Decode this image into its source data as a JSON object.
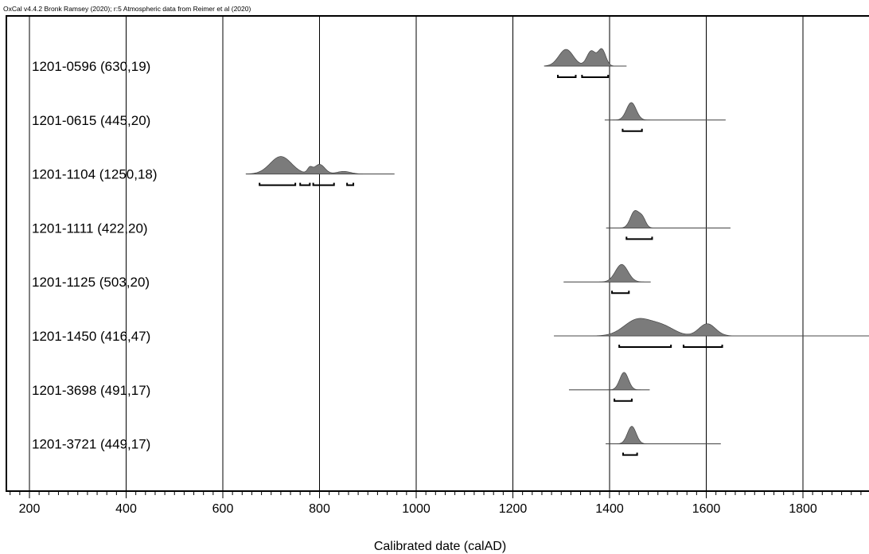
{
  "credit": "OxCal v4.4.2 Bronk Ramsey (2020); r:5 Atmospheric data from Reimer et al (2020)",
  "chart_data": {
    "type": "multiple-plot",
    "xlabel": "Calibrated date (calAD)",
    "xlim": [
      155,
      1940
    ],
    "major_ticks": [
      200,
      400,
      600,
      800,
      1000,
      1200,
      1400,
      1600,
      1800
    ],
    "minor_tick_step": 20,
    "grid": true,
    "samples": [
      {
        "label": "1201-0596 (630,19)",
        "range": [
          1265,
          1435
        ],
        "peaks": [
          [
            1310,
            15,
            1.0
          ],
          [
            1362,
            9,
            0.9
          ],
          [
            1384,
            8,
            1.0
          ]
        ],
        "intervals": [
          [
            1293,
            1330
          ],
          [
            1343,
            1397
          ]
        ]
      },
      {
        "label": "1201-0615 (445,20)",
        "range": [
          1390,
          1640
        ],
        "peaks": [
          [
            1445,
            10,
            1.0
          ]
        ],
        "intervals": [
          [
            1427,
            1467
          ]
        ]
      },
      {
        "label": "1201-1104 (1250,18)",
        "range": [
          648,
          955
        ],
        "peaks": [
          [
            720,
            22,
            1.0
          ],
          [
            780,
            5,
            0.3
          ],
          [
            800,
            11,
            0.55
          ],
          [
            850,
            14,
            0.15
          ]
        ],
        "intervals": [
          [
            676,
            750
          ],
          [
            760,
            780
          ],
          [
            787,
            830
          ],
          [
            857,
            870
          ]
        ]
      },
      {
        "label": "1201-1111 (422,20)",
        "range": [
          1393,
          1650
        ],
        "peaks": [
          [
            1452,
            9,
            1.0
          ],
          [
            1468,
            7,
            0.55
          ]
        ],
        "intervals": [
          [
            1435,
            1488
          ]
        ]
      },
      {
        "label": "1201-1125 (503,20)",
        "range": [
          1305,
          1485
        ],
        "peaks": [
          [
            1425,
            13,
            1.0
          ]
        ],
        "intervals": [
          [
            1405,
            1440
          ]
        ]
      },
      {
        "label": "1201-1450 (416,47)",
        "range": [
          1285,
          1940
        ],
        "peaks": [
          [
            1458,
            28,
            1.0
          ],
          [
            1510,
            25,
            0.55
          ],
          [
            1602,
            17,
            0.75
          ]
        ],
        "intervals": [
          [
            1420,
            1527
          ],
          [
            1553,
            1633
          ]
        ]
      },
      {
        "label": "1201-3698 (491,17)",
        "range": [
          1316,
          1483
        ],
        "peaks": [
          [
            1430,
            9,
            1.0
          ]
        ],
        "intervals": [
          [
            1410,
            1446
          ]
        ]
      },
      {
        "label": "1201-3721 (449,17)",
        "range": [
          1392,
          1630
        ],
        "peaks": [
          [
            1446,
            9,
            1.0
          ]
        ],
        "intervals": [
          [
            1428,
            1457
          ]
        ]
      }
    ]
  }
}
